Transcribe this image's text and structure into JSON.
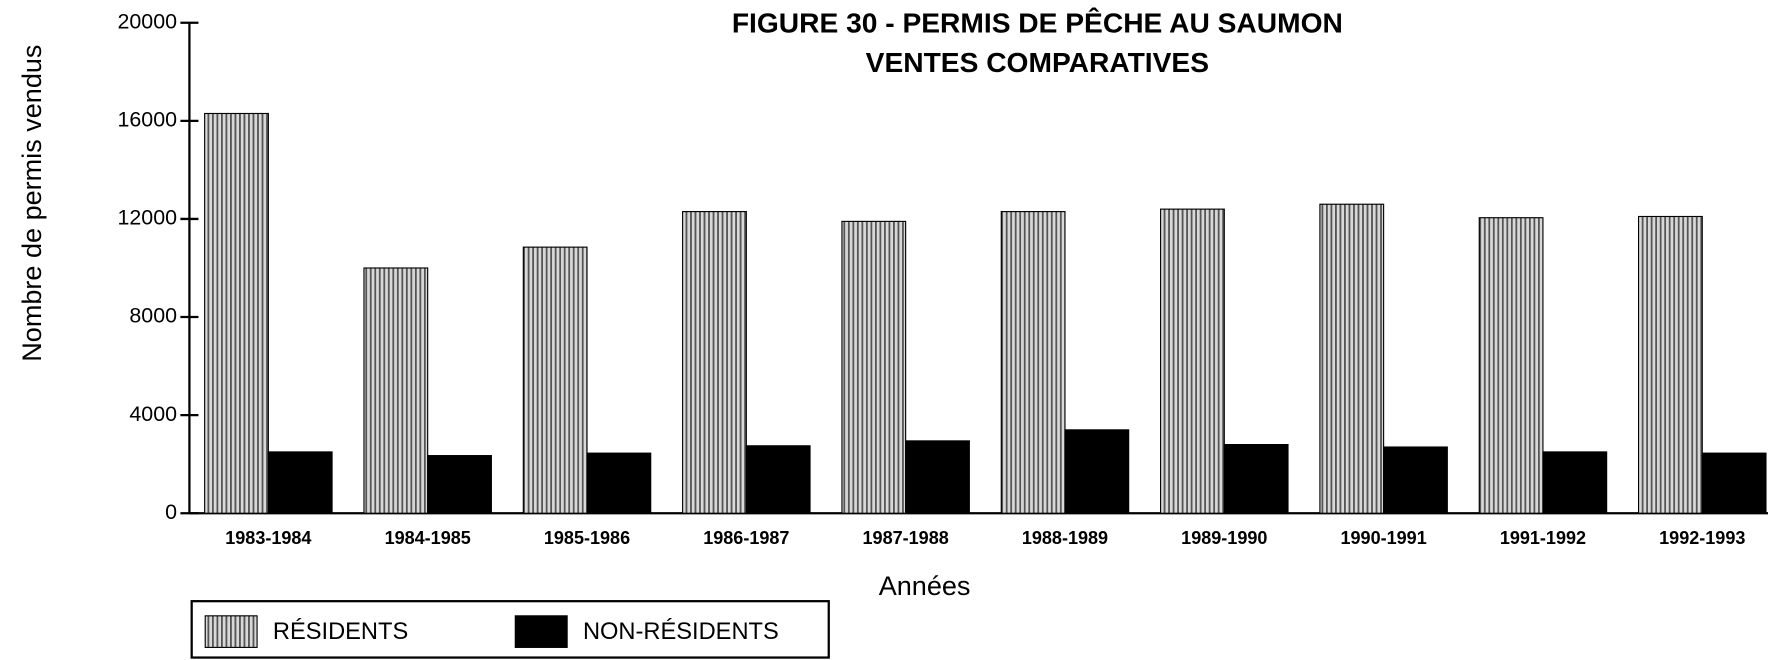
{
  "chart_data": {
    "type": "bar",
    "title": "FIGURE 30 - PERMIS DE PÊCHE AU SAUMON",
    "subtitle": "VENTES COMPARATIVES",
    "x_label": "Années",
    "y_label": "Nombre de permis vendus",
    "categories": [
      "1983-1984",
      "1984-1985",
      "1985-1986",
      "1986-1987",
      "1987-1988",
      "1988-1989",
      "1989-1990",
      "1990-1991",
      "1991-1992",
      "1992-1993"
    ],
    "series": [
      {
        "name": "RÉSIDENTS",
        "color": "#9a9a9a",
        "values": [
          16300,
          10000,
          10850,
          12300,
          11900,
          12300,
          12400,
          12600,
          12050,
          12100
        ]
      },
      {
        "name": "NON-RÉSIDENTS",
        "color": "#000000",
        "values": [
          2500,
          2350,
          2450,
          2750,
          2950,
          3400,
          2800,
          2700,
          2500,
          2450
        ]
      }
    ],
    "ylim": [
      0,
      20000
    ],
    "yticks": [
      0,
      4000,
      8000,
      12000,
      16000,
      20000
    ],
    "legend": "bottom-left"
  }
}
